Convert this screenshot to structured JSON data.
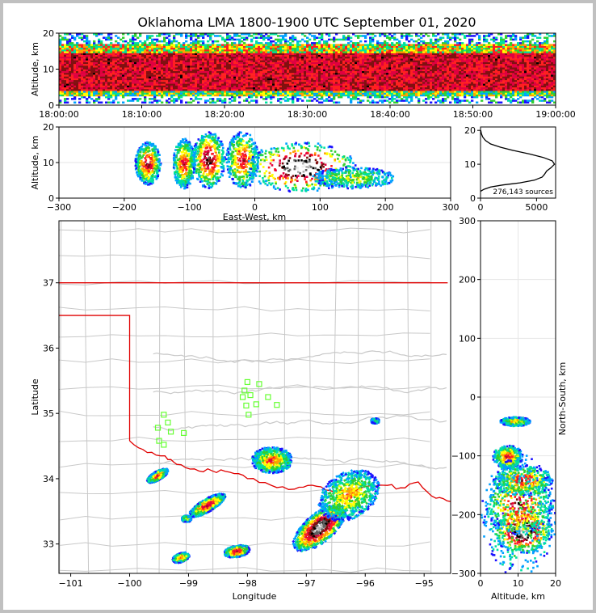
{
  "title": "Oklahoma LMA 1800-1900 UTC September 01, 2020",
  "colors": {
    "density_scale": [
      "#1a10ff",
      "#00a0ff",
      "#00e0a0",
      "#30d030",
      "#ffff00",
      "#ffa000",
      "#ff2020",
      "#e00040",
      "#801010",
      "#000000",
      "#606060",
      "#b0b0b0",
      "#f0f0f0"
    ],
    "state_border": "#e00000",
    "county_lines": "#c8c8c8",
    "station": "#66ff33"
  },
  "chart_data": [
    {
      "id": "time_height",
      "type": "heatmap",
      "xlabel": "",
      "ylabel": "Altitude, km",
      "x_ticks": [
        "18:00:00",
        "18:10:00",
        "18:20:00",
        "18:30:00",
        "18:40:00",
        "18:50:00",
        "19:00:00"
      ],
      "xlim": [
        "18:00:00",
        "19:00:00"
      ],
      "y_ticks": [
        0,
        10,
        20
      ],
      "ylim": [
        0,
        20
      ],
      "dense_altitude_km": [
        4,
        14
      ]
    },
    {
      "id": "east_west_height",
      "type": "heatmap",
      "xlabel": "East-West, km",
      "ylabel": "Altitude, km",
      "x_ticks": [
        -300,
        -200,
        -100,
        0,
        100,
        200,
        300
      ],
      "xlim": [
        -300,
        300
      ],
      "y_ticks": [
        0,
        10,
        20
      ],
      "ylim": [
        0,
        20
      ],
      "cells": [
        {
          "x": -165,
          "alt": 10,
          "wx": 14,
          "wy": 6,
          "level": 8
        },
        {
          "x": -110,
          "alt": 10,
          "wx": 12,
          "wy": 7,
          "level": 7
        },
        {
          "x": -72,
          "alt": 11,
          "wx": 18,
          "wy": 8,
          "level": 9
        },
        {
          "x": -20,
          "alt": 11,
          "wx": 18,
          "wy": 8,
          "level": 7
        },
        {
          "x": 70,
          "alt": 9,
          "wx": 60,
          "wy": 7,
          "level": 12
        },
        {
          "x": 150,
          "alt": 6,
          "wx": 45,
          "wy": 3,
          "level": 4
        }
      ]
    },
    {
      "id": "altitude_histogram",
      "type": "line",
      "x_ticks": [
        0,
        5000
      ],
      "xlim": [
        0,
        6700
      ],
      "y_ticks": [
        0,
        10,
        20
      ],
      "ylim": [
        0,
        21
      ],
      "annotation": "276,143 sources",
      "points": [
        [
          0,
          2.0
        ],
        [
          300,
          2.6
        ],
        [
          900,
          3.3
        ],
        [
          2000,
          3.9
        ],
        [
          3500,
          4.5
        ],
        [
          4800,
          5.3
        ],
        [
          5500,
          6.2
        ],
        [
          5700,
          7.0
        ],
        [
          5900,
          8.0
        ],
        [
          6300,
          9.0
        ],
        [
          6600,
          10.0
        ],
        [
          6400,
          11.0
        ],
        [
          5600,
          12.0
        ],
        [
          4400,
          13.0
        ],
        [
          3000,
          14.0
        ],
        [
          1800,
          15.0
        ],
        [
          900,
          16.0
        ],
        [
          450,
          17.0
        ],
        [
          200,
          18.0
        ],
        [
          80,
          19.0
        ],
        [
          20,
          20.0
        ]
      ]
    },
    {
      "id": "plan_view",
      "type": "heatmap",
      "xlabel": "Longitude",
      "ylabel": "Latitude",
      "x_ticks": [
        -101,
        -100,
        -99,
        -98,
        -97,
        -96,
        -95
      ],
      "xlim": [
        -101.2,
        -94.55
      ],
      "y_ticks": [
        33,
        34,
        35,
        36,
        37
      ],
      "ylim": [
        32.55,
        37.95
      ],
      "cells": [
        {
          "lon": -96.8,
          "lat": 33.25,
          "r1": 0.55,
          "r2": 0.22,
          "angle": -40,
          "level": 12
        },
        {
          "lon": -96.3,
          "lat": 33.75,
          "r1": 0.55,
          "r2": 0.35,
          "angle": -30,
          "level": 5
        },
        {
          "lon": -97.6,
          "lat": 34.3,
          "r1": 0.35,
          "r2": 0.2,
          "angle": 0,
          "level": 6
        },
        {
          "lon": -98.7,
          "lat": 33.6,
          "r1": 0.35,
          "r2": 0.1,
          "angle": -30,
          "level": 8
        },
        {
          "lon": -99.55,
          "lat": 34.05,
          "r1": 0.2,
          "r2": 0.07,
          "angle": -30,
          "level": 7
        },
        {
          "lon": -98.2,
          "lat": 32.9,
          "r1": 0.22,
          "r2": 0.09,
          "angle": -10,
          "level": 8
        },
        {
          "lon": -99.15,
          "lat": 32.8,
          "r1": 0.15,
          "r2": 0.07,
          "angle": -20,
          "level": 6
        },
        {
          "lon": -99.05,
          "lat": 33.4,
          "r1": 0.08,
          "r2": 0.05,
          "angle": 0,
          "level": 5
        },
        {
          "lon": -95.85,
          "lat": 34.9,
          "r1": 0.07,
          "r2": 0.04,
          "angle": 0,
          "level": 3
        }
      ],
      "stations": [
        [
          -98.0,
          35.48
        ],
        [
          -97.8,
          35.45
        ],
        [
          -98.05,
          35.35
        ],
        [
          -97.95,
          35.28
        ],
        [
          -98.08,
          35.25
        ],
        [
          -97.65,
          35.25
        ],
        [
          -97.85,
          35.14
        ],
        [
          -97.5,
          35.13
        ],
        [
          -98.02,
          35.12
        ],
        [
          -97.98,
          34.98
        ],
        [
          -99.42,
          34.98
        ],
        [
          -99.35,
          34.86
        ],
        [
          -99.52,
          34.78
        ],
        [
          -99.3,
          34.72
        ],
        [
          -99.08,
          34.7
        ],
        [
          -99.5,
          34.58
        ],
        [
          -99.42,
          34.52
        ]
      ]
    },
    {
      "id": "north_south_height",
      "type": "heatmap",
      "xlabel": "Altitude, km",
      "ylabel": "North-South, km",
      "x_ticks": [
        0,
        10,
        20
      ],
      "xlim": [
        0,
        20
      ],
      "y_ticks": [
        -300,
        -200,
        -100,
        0,
        100,
        200,
        300
      ],
      "ylim": [
        -300,
        300
      ],
      "cells": [
        {
          "alt": 11,
          "y": -225,
          "wx": 8,
          "wy": 30,
          "level": 12
        },
        {
          "alt": 10,
          "y": -180,
          "wx": 9,
          "wy": 40,
          "level": 8
        },
        {
          "alt": 11,
          "y": -140,
          "wx": 8,
          "wy": 20,
          "level": 7
        },
        {
          "alt": 7,
          "y": -100,
          "wx": 4,
          "wy": 15,
          "level": 7
        },
        {
          "alt": 10,
          "y": -200,
          "wx": 10,
          "wy": 80,
          "level": 4
        },
        {
          "alt": 9,
          "y": -40,
          "wx": 4,
          "wy": 6,
          "level": 5
        }
      ]
    }
  ]
}
